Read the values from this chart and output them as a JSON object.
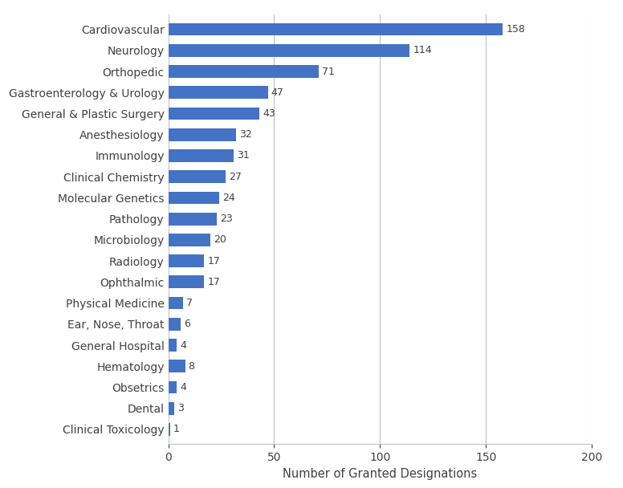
{
  "categories": [
    "Clinical Toxicology",
    "Dental",
    "Obsetrics",
    "Hematology",
    "General Hospital",
    "Ear, Nose, Throat",
    "Physical Medicine",
    "Ophthalmic",
    "Radiology",
    "Microbiology",
    "Pathology",
    "Molecular Genetics",
    "Clinical Chemistry",
    "Immunology",
    "Anesthesiology",
    "General & Plastic Surgery",
    "Gastroenterology & Urology",
    "Orthopedic",
    "Neurology",
    "Cardiovascular"
  ],
  "values": [
    1,
    3,
    4,
    8,
    4,
    6,
    7,
    17,
    17,
    20,
    23,
    24,
    27,
    31,
    32,
    43,
    47,
    71,
    114,
    158
  ],
  "bar_color": "#4472C4",
  "xlabel": "Number of Granted Designations",
  "xlim": [
    0,
    200
  ],
  "xticks": [
    0,
    50,
    100,
    150,
    200
  ],
  "grid_color": "#C0C0C0",
  "background_color": "#FFFFFF",
  "label_fontsize": 10,
  "tick_fontsize": 10,
  "value_fontsize": 9,
  "bar_height": 0.6,
  "xlabel_fontsize": 10.5
}
